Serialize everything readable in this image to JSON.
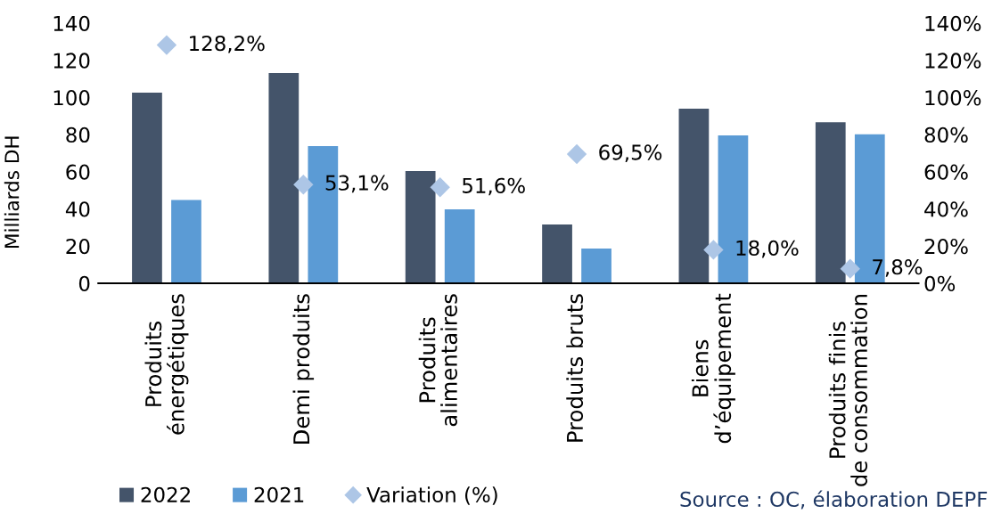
{
  "chart_data": {
    "type": "bar",
    "ylabel": "Milliards DH",
    "categories": [
      "Produits\nénergétiques",
      "Demi produits",
      "Produits\nalimentaires",
      "Produits bruts",
      "Biens\nd’équipement",
      "Produits finis\nde consommation"
    ],
    "series": [
      {
        "name": "2022",
        "color": "#44546a",
        "values": [
          102.6,
          113.1,
          60.4,
          31.6,
          94.0,
          86.6
        ]
      },
      {
        "name": "2021",
        "color": "#5b9bd5",
        "values": [
          44.8,
          73.8,
          39.8,
          18.7,
          79.6,
          80.2
        ]
      },
      {
        "name": "Variation (%)",
        "type": "scatter",
        "axis": "y2",
        "marker": "diamond",
        "color": "#adc6e6",
        "values": [
          128.2,
          53.1,
          51.6,
          69.5,
          18.0,
          7.8
        ],
        "value_labels": [
          "128,2%",
          "53,1%",
          "51,6%",
          "69,5%",
          "18,0%",
          "7,8%"
        ]
      }
    ],
    "ylim": [
      0,
      140
    ],
    "yticks": [
      0,
      20,
      40,
      60,
      80,
      100,
      120,
      140
    ],
    "y2lim": [
      0,
      140
    ],
    "y2ticks": [
      {
        "value": 0,
        "label": "0%"
      },
      {
        "value": 20,
        "label": "20%"
      },
      {
        "value": 40,
        "label": "40%"
      },
      {
        "value": 60,
        "label": "60%"
      },
      {
        "value": 80,
        "label": "80%"
      },
      {
        "value": 100,
        "label": "100%"
      },
      {
        "value": 120,
        "label": "120%"
      },
      {
        "value": 140,
        "label": "140%"
      }
    ],
    "legend": "bottom left",
    "annotations": [
      "Source : OC, élaboration DEPF"
    ]
  }
}
